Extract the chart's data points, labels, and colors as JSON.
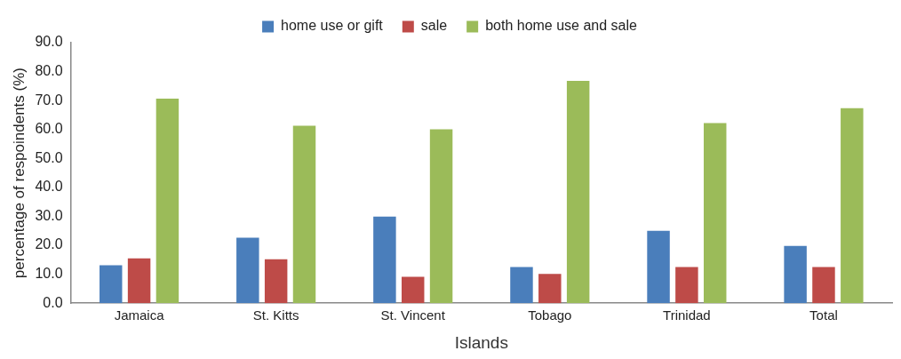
{
  "chart_data": {
    "type": "bar",
    "xlabel": "Islands",
    "ylabel": "percentage of respoindents (%)",
    "categories": [
      "Jamaica",
      "St. Kitts",
      "St. Vincent",
      "Tobago",
      "Trinidad",
      "Total"
    ],
    "series": [
      {
        "name": "home use or gift",
        "color": "#4a7ebb",
        "values": [
          13.1,
          22.6,
          29.9,
          12.5,
          25.0,
          19.8
        ]
      },
      {
        "name": "sale",
        "color": "#be4b48",
        "values": [
          15.5,
          15.2,
          9.1,
          10.1,
          12.5,
          12.5
        ]
      },
      {
        "name": "both home use and sale",
        "color": "#9bbb59",
        "values": [
          70.7,
          61.3,
          60.1,
          76.8,
          62.2,
          67.4
        ]
      }
    ],
    "ylim": [
      0,
      90
    ],
    "yticks": [
      {
        "value": 0,
        "label": "0.0"
      },
      {
        "value": 10,
        "label": "10.0"
      },
      {
        "value": 20,
        "label": "20.0"
      },
      {
        "value": 30,
        "label": "30.0"
      },
      {
        "value": 40,
        "label": "40.0"
      },
      {
        "value": 50,
        "label": "50.0"
      },
      {
        "value": 60,
        "label": "60.0"
      },
      {
        "value": 70,
        "label": "70.0"
      },
      {
        "value": 80,
        "label": "80.0"
      },
      {
        "value": 90,
        "label": "90.0"
      }
    ],
    "grid": false,
    "legend": "top"
  }
}
